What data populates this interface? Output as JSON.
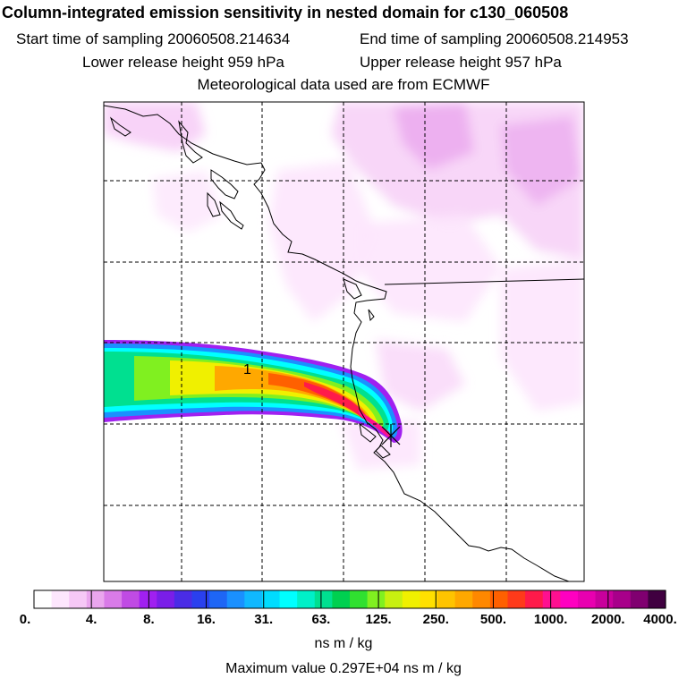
{
  "header": {
    "title": "Column-integrated emission sensitivity in nested domain for c130_060508",
    "start_label": "Start time of sampling 20060508.214634",
    "end_label": "End time of sampling 20060508.214953",
    "lower_label": "Lower release height  959 hPa",
    "upper_label": "Upper release height  957 hPa",
    "met_label": "Meteorological data used are from ECMWF"
  },
  "map": {
    "release_marker_label": "1"
  },
  "colorbar": {
    "tick_labels": [
      "0.",
      "4.",
      "8.",
      "16.",
      "31.",
      "63.",
      "125.",
      "250.",
      "500.",
      "1000.",
      "2000.",
      "4000."
    ],
    "colors": [
      "#ffffff",
      "#fde6fd",
      "#f6c8f6",
      "#eaa6ee",
      "#d97be8",
      "#c04be4",
      "#a020f0",
      "#7a1ee8",
      "#4a2ce6",
      "#2a40ee",
      "#1e66f5",
      "#1a90ff",
      "#10b8ff",
      "#00dcff",
      "#00ffff",
      "#00f0c8",
      "#00e090",
      "#00d050",
      "#30e030",
      "#80f020",
      "#c8f010",
      "#f0f000",
      "#ffe000",
      "#ffc400",
      "#ffa800",
      "#ff8800",
      "#ff6000",
      "#ff3a1a",
      "#ff1a4a",
      "#ff1090",
      "#ff00c0",
      "#e800b0",
      "#c8009c",
      "#a8008a",
      "#800070",
      "#400040"
    ],
    "units": "ns m / kg"
  },
  "footer": {
    "max_value": "Maximum value  0.297E+04 ns m / kg"
  }
}
